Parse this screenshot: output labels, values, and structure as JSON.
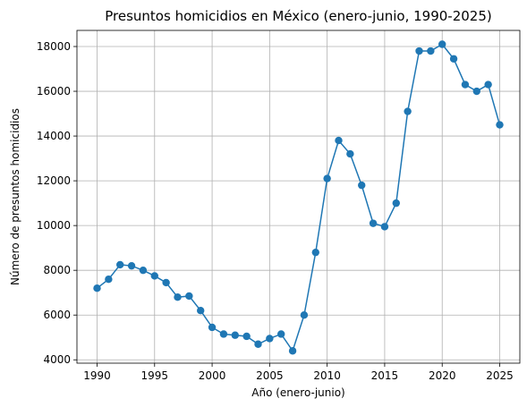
{
  "chart_data": {
    "type": "line",
    "title": "Presuntos homicidios en México (enero-junio, 1990-2025)",
    "xlabel": "Año (enero-junio)",
    "ylabel": "Número de presuntos homicidios",
    "xlim": [
      1988.25,
      2026.75
    ],
    "ylim": [
      3850,
      18720
    ],
    "xticks": [
      1990,
      1995,
      2000,
      2005,
      2010,
      2015,
      2020,
      2025
    ],
    "yticks": [
      4000,
      6000,
      8000,
      10000,
      12000,
      14000,
      16000,
      18000
    ],
    "grid": true,
    "color": "#1f77b4",
    "x": [
      1990,
      1991,
      1992,
      1993,
      1994,
      1995,
      1996,
      1997,
      1998,
      1999,
      2000,
      2001,
      2002,
      2003,
      2004,
      2005,
      2006,
      2007,
      2008,
      2009,
      2010,
      2011,
      2012,
      2013,
      2014,
      2015,
      2016,
      2017,
      2018,
      2019,
      2020,
      2021,
      2022,
      2023,
      2024,
      2025
    ],
    "y": [
      7200,
      7600,
      8250,
      8200,
      8000,
      7750,
      7450,
      6800,
      6850,
      6200,
      5450,
      5150,
      5100,
      5050,
      4700,
      4950,
      5150,
      4400,
      6000,
      8800,
      12100,
      13800,
      13200,
      11800,
      10100,
      9950,
      11000,
      15100,
      17800,
      17800,
      18100,
      17450,
      16300,
      16000,
      16300,
      14500
    ]
  }
}
